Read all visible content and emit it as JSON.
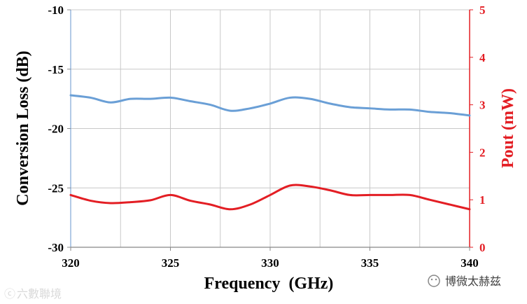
{
  "chart_data": {
    "type": "line",
    "title": "",
    "xlabel": "Frequency  (GHz)",
    "ylabel_left": "Conversion Loss (dB)",
    "ylabel_right": "Pout (mW)",
    "xlim": [
      320,
      340
    ],
    "ylim_left": [
      -30,
      -10
    ],
    "ylim_right": [
      0,
      5
    ],
    "x_ticks": [
      "320",
      "325",
      "330",
      "335",
      "340"
    ],
    "y_ticks_left": [
      "-10",
      "-15",
      "-20",
      "-25",
      "-30"
    ],
    "y_ticks_right": [
      "5",
      "4",
      "3",
      "2",
      "1",
      "0"
    ],
    "grid": true,
    "series": [
      {
        "axis": "left",
        "color": "#6a9fd6",
        "x": [
          320,
          321,
          322,
          323,
          324,
          325,
          326,
          327,
          328,
          329,
          330,
          331,
          332,
          333,
          334,
          335,
          336,
          337,
          338,
          339,
          340
        ],
        "y": [
          -17.2,
          -17.4,
          -17.8,
          -17.5,
          -17.5,
          -17.4,
          -17.7,
          -18.0,
          -18.5,
          -18.3,
          -17.9,
          -17.4,
          -17.5,
          -17.9,
          -18.2,
          -18.3,
          -18.4,
          -18.4,
          -18.6,
          -18.7,
          -18.9
        ]
      },
      {
        "axis": "right",
        "color": "#e31e24",
        "x": [
          320,
          321,
          322,
          323,
          324,
          325,
          326,
          327,
          328,
          329,
          330,
          331,
          332,
          333,
          334,
          335,
          336,
          337,
          338,
          339,
          340
        ],
        "y": [
          1.1,
          0.98,
          0.93,
          0.95,
          0.99,
          1.1,
          0.98,
          0.9,
          0.8,
          0.9,
          1.1,
          1.3,
          1.28,
          1.2,
          1.1,
          1.1,
          1.1,
          1.1,
          1.0,
          0.9,
          0.8
        ]
      }
    ]
  },
  "watermarks": {
    "bottom_left": "六數聯境",
    "bottom_right": "博微太赫兹"
  }
}
